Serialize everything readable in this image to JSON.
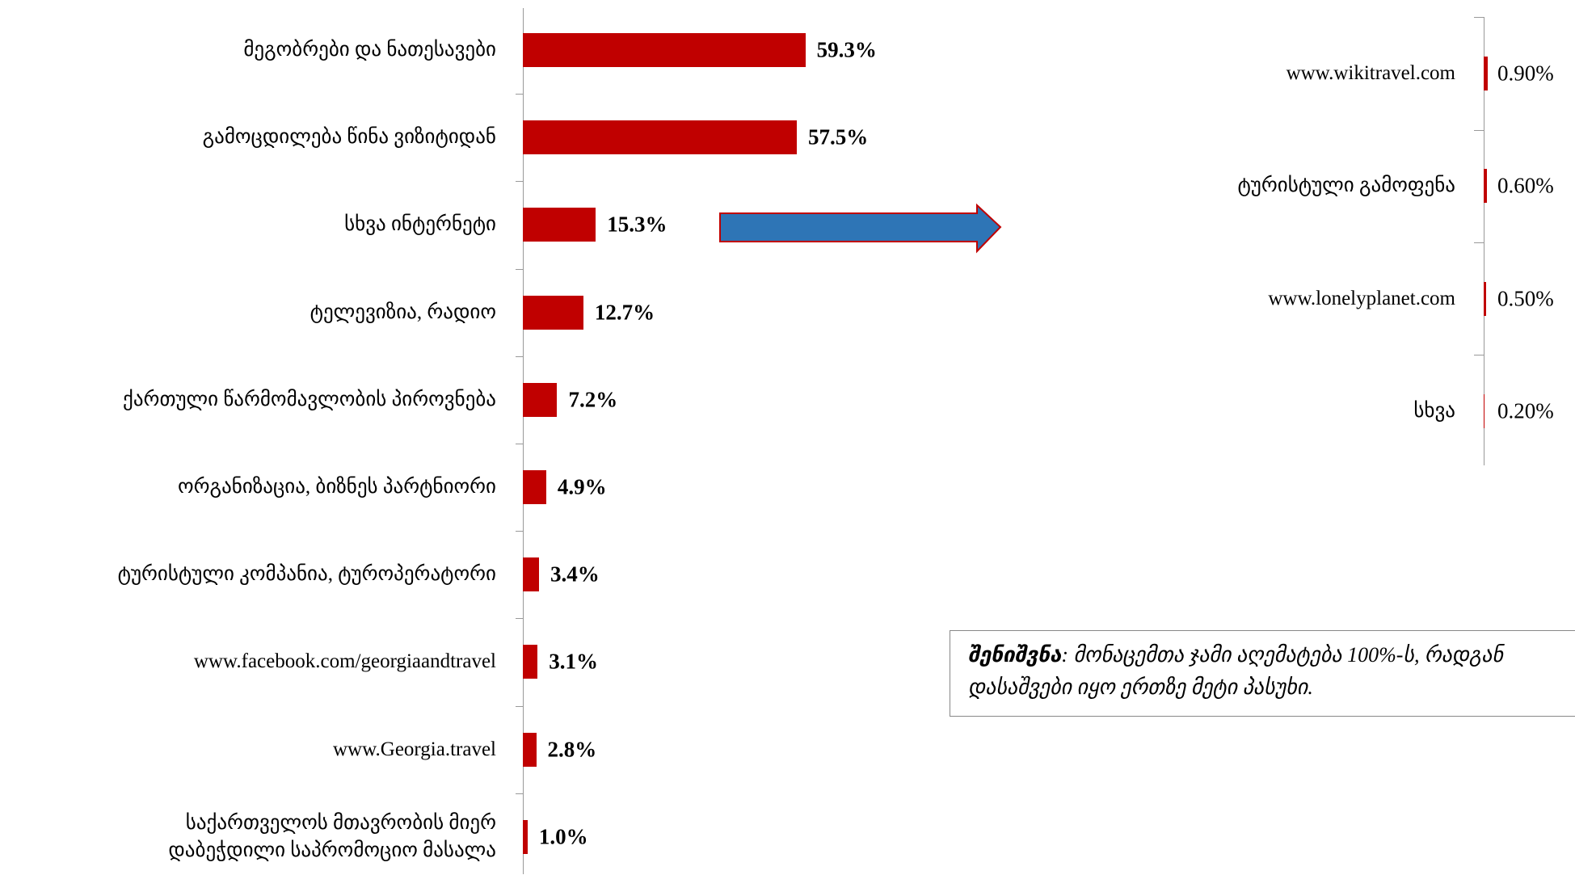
{
  "chart_data": [
    {
      "type": "bar",
      "orientation": "horizontal",
      "color": "#c00000",
      "categories": [
        "მეგობრები და ნათესავები",
        "გამოცდილება წინა ვიზიტიდან",
        "სხვა ინტერნეტი",
        "ტელევიზია, რადიო",
        "ქართული წარმომავლობის პიროვნება",
        "ორგანიზაცია, ბიზნეს პარტნიორი",
        "ტურისტული კომპანია, ტუროპერატორი",
        "www.facebook.com/georgiaandtravel",
        "www.Georgia.travel",
        "საქართველოს მთავრობის მიერ\nდაბეჭდილი საპრომოციო მასალა"
      ],
      "values": [
        59.3,
        57.5,
        15.3,
        12.7,
        7.2,
        4.9,
        3.4,
        3.1,
        2.8,
        1.0
      ],
      "value_labels": [
        "59.3%",
        "57.5%",
        "15.3%",
        "12.7%",
        "7.2%",
        "4.9%",
        "3.4%",
        "3.1%",
        "2.8%",
        "1.0%"
      ]
    },
    {
      "type": "bar",
      "orientation": "horizontal",
      "color": "#c00000",
      "categories": [
        "www.wikitravel.com",
        "ტურისტული გამოფენა",
        "www.lonelyplanet.com",
        "სხვა"
      ],
      "values": [
        0.9,
        0.6,
        0.5,
        0.2
      ],
      "value_labels": [
        "0.90%",
        "0.60%",
        "0.50%",
        "0.20%"
      ]
    }
  ],
  "note": {
    "label": "შენიშვნა",
    "text": ": მონაცემთა ჯამი აღემატება 100%-ს, რადგან დასაშვები იყო ერთზე მეტი პასუხი."
  }
}
